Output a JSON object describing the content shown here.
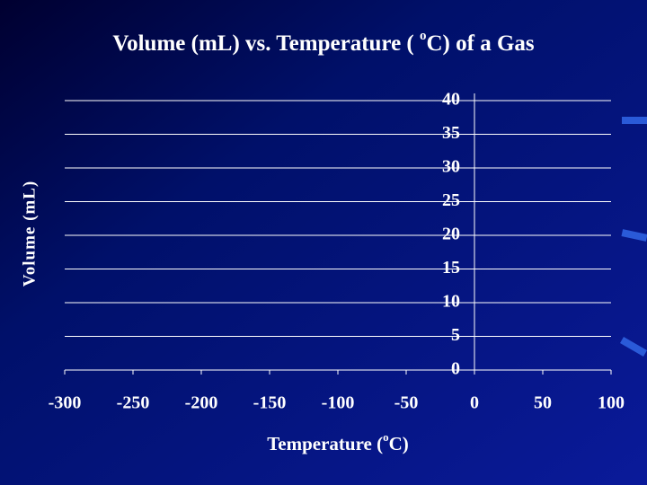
{
  "chart_data": {
    "type": "scatter",
    "title": [
      "Volume (mL) vs. Temperature ( ",
      "o",
      "C) of a Gas"
    ],
    "x_label": [
      "Temperature (",
      "o",
      "C)"
    ],
    "y_label": "Volume (mL)",
    "xlim": [
      -300,
      100
    ],
    "xticks": [
      -300,
      -250,
      -200,
      -150,
      -100,
      -50,
      0,
      50,
      100
    ],
    "ylim": [
      0,
      40
    ],
    "yticks": [
      0,
      5,
      10,
      15,
      20,
      25,
      30,
      35,
      40
    ],
    "grid": true
  }
}
